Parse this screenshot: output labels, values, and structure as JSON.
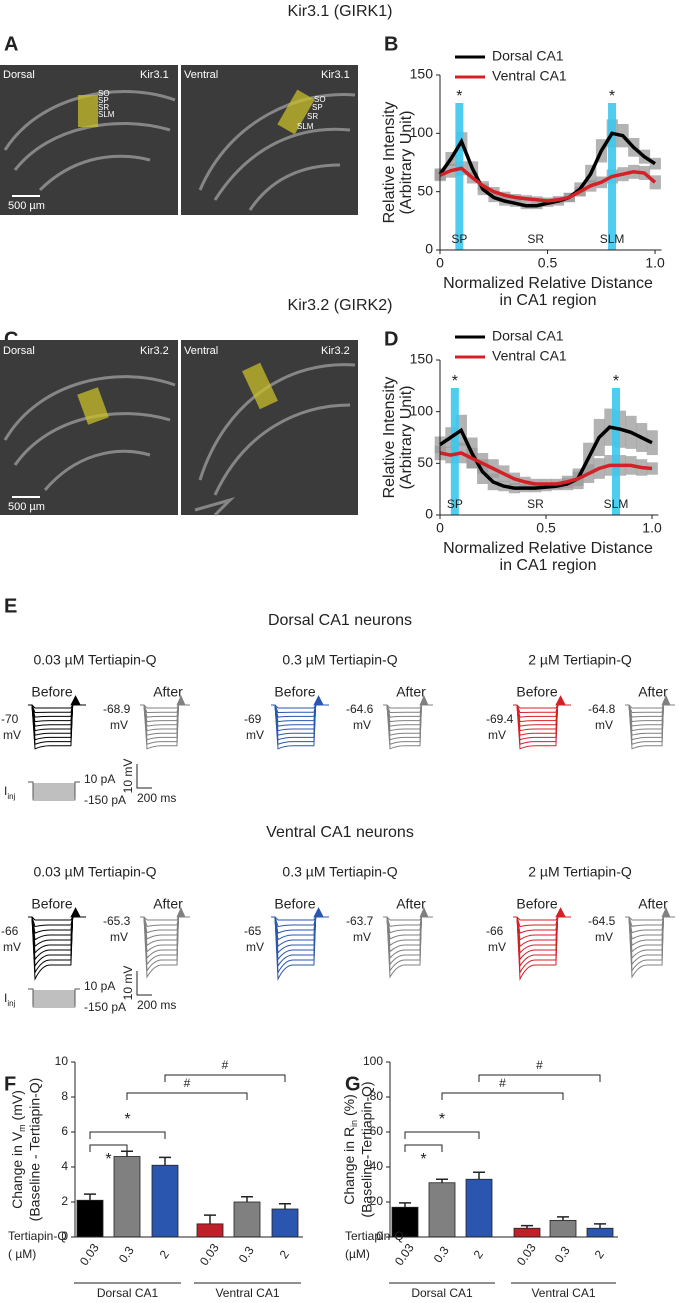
{
  "figure_title_1": "Kir3.1 (GIRK1)",
  "figure_title_2": "Kir3.2 (GIRK2)",
  "panel_a": {
    "label": "A",
    "images": [
      {
        "region": "Dorsal",
        "stain": "Kir3.1",
        "layers": [
          "SO",
          "SP",
          "SR",
          "SLM"
        ],
        "scale": "500 µm"
      },
      {
        "region": "Ventral",
        "stain": "Kir3.1",
        "layers": [
          "SO",
          "SP",
          "SR",
          "SLM"
        ]
      }
    ]
  },
  "panel_c": {
    "label": "C",
    "images": [
      {
        "region": "Dorsal",
        "stain": "Kir3.2",
        "scale": "500 µm"
      },
      {
        "region": "Ventral",
        "stain": "Kir3.2"
      }
    ]
  },
  "chart_data": [
    {
      "type": "line",
      "panel": "B",
      "x": [
        0,
        0.05,
        0.1,
        0.15,
        0.2,
        0.25,
        0.3,
        0.35,
        0.4,
        0.45,
        0.5,
        0.55,
        0.6,
        0.65,
        0.7,
        0.75,
        0.8,
        0.85,
        0.9,
        0.95,
        1
      ],
      "series": [
        {
          "name": "Dorsal CA1",
          "color": "#000000",
          "values": [
            65,
            78,
            93,
            70,
            52,
            45,
            42,
            40,
            38,
            38,
            40,
            42,
            45,
            52,
            65,
            85,
            100,
            98,
            88,
            80,
            74
          ],
          "errors": [
            5,
            6,
            8,
            6,
            5,
            4,
            4,
            3,
            3,
            3,
            3,
            4,
            4,
            6,
            8,
            10,
            12,
            10,
            8,
            6,
            5
          ]
        },
        {
          "name": "Ventral CA1",
          "color": "#d42027",
          "values": [
            64,
            68,
            70,
            62,
            55,
            50,
            47,
            45,
            44,
            43,
            42,
            43,
            45,
            50,
            55,
            58,
            63,
            65,
            67,
            66,
            58
          ],
          "errors": [
            5,
            6,
            6,
            5,
            4,
            4,
            3,
            3,
            3,
            3,
            3,
            3,
            4,
            4,
            5,
            5,
            6,
            6,
            6,
            6,
            6
          ]
        }
      ],
      "xlim": [
        0,
        1.03
      ],
      "xticks": [
        0,
        0.5,
        {
          "value": 1,
          "label": "1.0"
        }
      ],
      "ylim": [
        0,
        150
      ],
      "yticks": [
        0,
        50,
        100,
        150
      ],
      "x_label": [
        "Normalized Relative Distance",
        "in CA1 region"
      ],
      "y_label": [
        "Relative Intensity",
        "(Arbitrary Unit)"
      ],
      "highlights": [
        {
          "x": 0.09,
          "label": "*"
        },
        {
          "x": 0.8,
          "label": "*"
        }
      ],
      "regions": [
        "SP",
        "SR",
        "SLM"
      ],
      "band_color": "#9a9a9a",
      "highlight_color": "#3cc8f0"
    },
    {
      "type": "line",
      "panel": "D",
      "x": [
        0,
        0.05,
        0.1,
        0.15,
        0.2,
        0.25,
        0.3,
        0.35,
        0.4,
        0.45,
        0.5,
        0.55,
        0.6,
        0.65,
        0.7,
        0.75,
        0.8,
        0.85,
        0.9,
        0.95,
        1
      ],
      "series": [
        {
          "name": "Dorsal CA1",
          "color": "#000000",
          "values": [
            68,
            75,
            82,
            60,
            42,
            32,
            28,
            26,
            26,
            26,
            27,
            28,
            30,
            35,
            55,
            75,
            85,
            83,
            80,
            75,
            70
          ],
          "errors": [
            8,
            10,
            15,
            15,
            12,
            8,
            5,
            5,
            4,
            4,
            4,
            4,
            6,
            10,
            15,
            18,
            18,
            18,
            16,
            14,
            12
          ]
        },
        {
          "name": "Ventral CA1",
          "color": "#d42027",
          "values": [
            60,
            58,
            60,
            55,
            50,
            45,
            40,
            35,
            32,
            30,
            30,
            30,
            32,
            35,
            40,
            45,
            48,
            48,
            48,
            46,
            45
          ],
          "errors": [
            7,
            8,
            10,
            10,
            10,
            9,
            8,
            6,
            5,
            5,
            5,
            5,
            6,
            7,
            9,
            10,
            10,
            10,
            9,
            8,
            6
          ]
        }
      ],
      "xlim": [
        0,
        1.03
      ],
      "xticks": [
        0,
        0.5,
        {
          "value": 1,
          "label": "1.0"
        }
      ],
      "ylim": [
        0,
        150
      ],
      "yticks": [
        0,
        50,
        100,
        150
      ],
      "x_label": [
        "Normalized Relative Distance",
        "in CA1 region"
      ],
      "y_label": [
        "Relative Intensity",
        "(Arbitrary Unit)"
      ],
      "highlights": [
        {
          "x": 0.07,
          "label": "*"
        },
        {
          "x": 0.83,
          "label": "*"
        }
      ],
      "regions": [
        "SP",
        "SR",
        "SLM"
      ],
      "band_color": "#9a9a9a",
      "highlight_color": "#3cc8f0"
    },
    {
      "type": "bar",
      "panel": "F",
      "categories": [
        "0.03",
        "0.3",
        "2",
        "0.03",
        "0.3",
        "2"
      ],
      "values": [
        2.1,
        4.6,
        4.1,
        0.75,
        2.0,
        1.6
      ],
      "errors": [
        0.35,
        0.3,
        0.45,
        0.5,
        0.3,
        0.3
      ],
      "colors": [
        "#000000",
        "#808080",
        "#2a56b0",
        "#c0202a",
        "#808080",
        "#2a56b0"
      ],
      "ylim": [
        0,
        10
      ],
      "yticks": [
        0,
        2,
        4,
        6,
        8,
        10
      ],
      "y_label": {
        "text": "Change in V",
        "sub": "m",
        "text_end": " (mV)",
        "line2": "(Baseline - Tertiapin-Q)"
      },
      "dose_label": [
        "Tertiapin-Q",
        "( µM)"
      ],
      "groups": [
        "Dorsal CA1",
        "Ventral CA1"
      ],
      "annotations": [
        "*",
        "*",
        "#",
        "#"
      ]
    },
    {
      "type": "bar",
      "panel": "G",
      "categories": [
        "0.03",
        "0.3",
        "2",
        "0.03",
        "0.3",
        "2"
      ],
      "values": [
        17,
        31,
        33,
        5,
        9.5,
        5
      ],
      "errors": [
        2.5,
        2,
        4,
        1.5,
        2,
        2.5
      ],
      "colors": [
        "#000000",
        "#808080",
        "#2a56b0",
        "#c0202a",
        "#808080",
        "#2a56b0"
      ],
      "ylim": [
        0,
        100
      ],
      "yticks": [
        0,
        20,
        40,
        60,
        80,
        100
      ],
      "y_label": {
        "text": "Change in R",
        "sub": "in",
        "text_end": " (%)",
        "line2": "(Baseline-Tertiapin-Q)"
      },
      "dose_label": [
        "Tertiapin-Q",
        "(µM)"
      ],
      "groups": [
        "Dorsal CA1",
        "Ventral CA1"
      ],
      "annotations": [
        "*",
        "*",
        "#",
        "#"
      ]
    }
  ],
  "panel_e": {
    "label": "E",
    "sections": [
      {
        "title": "Dorsal CA1 neurons",
        "conditions": [
          {
            "title": "0.03 µM Tertiapin-Q",
            "color": "#000000",
            "before": {
              "label": "Before",
              "vm": "-70",
              "unit": "mV"
            },
            "after": {
              "label": "After",
              "vm": "-68.9",
              "unit": "mV"
            }
          },
          {
            "title": "0.3 µM Tertiapin-Q",
            "color": "#2a56b0",
            "before": {
              "label": "Before",
              "vm": "-69",
              "unit": "mV"
            },
            "after": {
              "label": "After",
              "vm": "-64.6",
              "unit": "mV"
            }
          },
          {
            "title": "2 µM Tertiapin-Q",
            "color": "#d42027",
            "before": {
              "label": "Before",
              "vm": "-69.4",
              "unit": "mV"
            },
            "after": {
              "label": "After",
              "vm": "-64.8",
              "unit": "mV"
            }
          }
        ],
        "scale": {
          "i": "I",
          "i_sub": "inj",
          "top": "10 pA",
          "bottom": "-150 pA",
          "v": "10 mV",
          "t": "200 ms"
        }
      },
      {
        "title": "Ventral CA1 neurons",
        "conditions": [
          {
            "title": "0.03 µM Tertiapin-Q",
            "color": "#000000",
            "before": {
              "label": "Before",
              "vm": "-66",
              "unit": "mV"
            },
            "after": {
              "label": "After",
              "vm": "-65.3",
              "unit": "mV"
            }
          },
          {
            "title": "0.3 µM Tertiapin-Q",
            "color": "#2a56b0",
            "before": {
              "label": "Before",
              "vm": "-65",
              "unit": "mV"
            },
            "after": {
              "label": "After",
              "vm": "-63.7",
              "unit": "mV"
            }
          },
          {
            "title": "2 µM Tertiapin-Q",
            "color": "#d42027",
            "before": {
              "label": "Before",
              "vm": "-66",
              "unit": "mV"
            },
            "after": {
              "label": "After",
              "vm": "-64.5",
              "unit": "mV"
            }
          }
        ],
        "scale": {
          "i": "I",
          "i_sub": "inj",
          "top": "10 pA",
          "bottom": "-150 pA",
          "v": "10 mV",
          "t": "200 ms"
        }
      }
    ]
  }
}
